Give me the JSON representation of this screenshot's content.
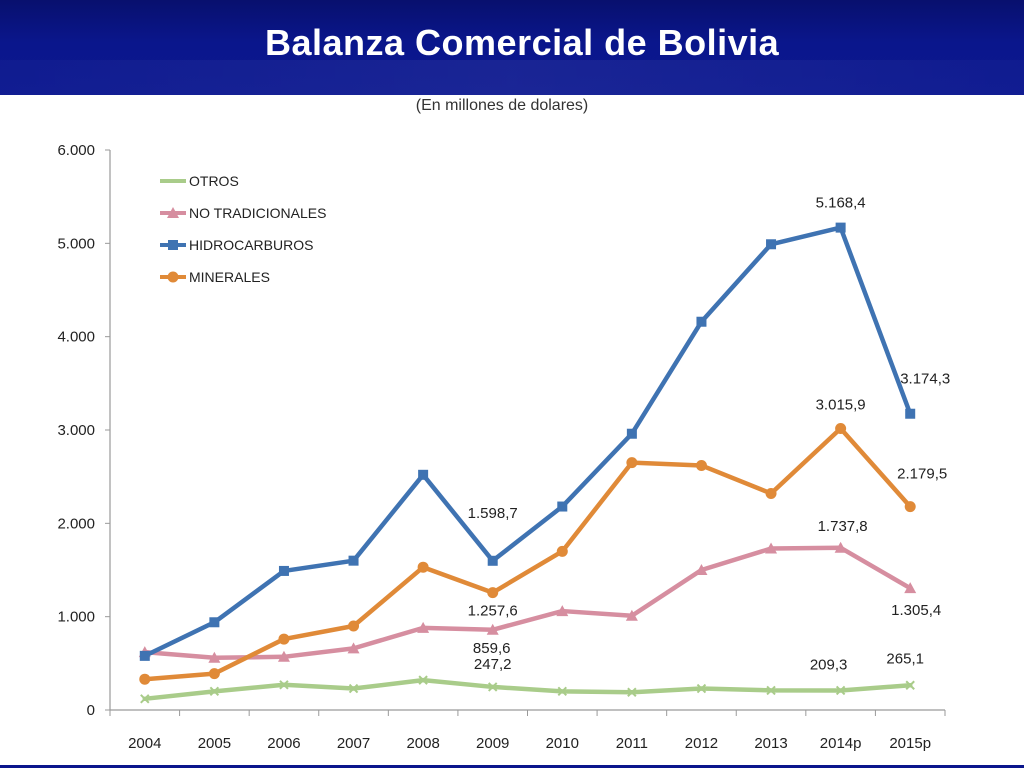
{
  "slide": {
    "title": "Balanza Comercial de Bolivia"
  },
  "chart_data": {
    "type": "line",
    "title": "",
    "subtitle": "(En millones de dolares)",
    "xlabel": "",
    "ylabel": "",
    "categories": [
      "2004",
      "2005",
      "2006",
      "2007",
      "2008",
      "2009",
      "2010",
      "2011",
      "2012",
      "2013",
      "2014p",
      "2015p"
    ],
    "ylim": [
      0,
      6000
    ],
    "yticks": [
      0,
      1000,
      2000,
      3000,
      4000,
      5000,
      6000
    ],
    "ytick_labels": [
      "0",
      "1.000",
      "2.000",
      "3.000",
      "4.000",
      "5.000",
      "6.000"
    ],
    "grid": false,
    "legend_position": "top-left",
    "series": [
      {
        "name": "OTROS",
        "color": "#a9cc8a",
        "marker": "x",
        "values": [
          120,
          200,
          270,
          230,
          320,
          247.2,
          200,
          190,
          230,
          210,
          209.3,
          265.1
        ]
      },
      {
        "name": "NO TRADICIONALES",
        "color": "#d68ea0",
        "marker": "triangle",
        "values": [
          620,
          560,
          570,
          660,
          880,
          859.6,
          1060,
          1010,
          1500,
          1730,
          1737.8,
          1305.4
        ]
      },
      {
        "name": "HIDROCARBUROS",
        "color": "#3f73b2",
        "marker": "square",
        "values": [
          580,
          940,
          1490,
          1600,
          2520,
          1598.7,
          2180,
          2960,
          4160,
          4990,
          5168.4,
          3174.3
        ]
      },
      {
        "name": "MINERALES",
        "color": "#e08a38",
        "marker": "circle",
        "values": [
          330,
          390,
          760,
          900,
          1530,
          1257.6,
          1700,
          2650,
          2620,
          2320,
          3015.9,
          2179.5
        ]
      }
    ],
    "annotations": [
      {
        "text": "5.168,4",
        "series": "HIDROCARBUROS",
        "category": "2014p"
      },
      {
        "text": "3.174,3",
        "series": "HIDROCARBUROS",
        "category": "2015p"
      },
      {
        "text": "1.598,7",
        "series": "HIDROCARBUROS",
        "category": "2009"
      },
      {
        "text": "3.015,9",
        "series": "MINERALES",
        "category": "2014p"
      },
      {
        "text": "2.179,5",
        "series": "MINERALES",
        "category": "2015p"
      },
      {
        "text": "1.257,6",
        "series": "MINERALES",
        "category": "2009"
      },
      {
        "text": "1.737,8",
        "series": "NO TRADICIONALES",
        "category": "2014p"
      },
      {
        "text": "1.305,4",
        "series": "NO TRADICIONALES",
        "category": "2015p"
      },
      {
        "text": "859,6",
        "series": "NO TRADICIONALES",
        "category": "2009"
      },
      {
        "text": "247,2",
        "series": "OTROS",
        "category": "2009"
      },
      {
        "text": "209,3",
        "series": "OTROS",
        "category": "2014p"
      },
      {
        "text": "265,1",
        "series": "OTROS",
        "category": "2015p"
      }
    ]
  }
}
